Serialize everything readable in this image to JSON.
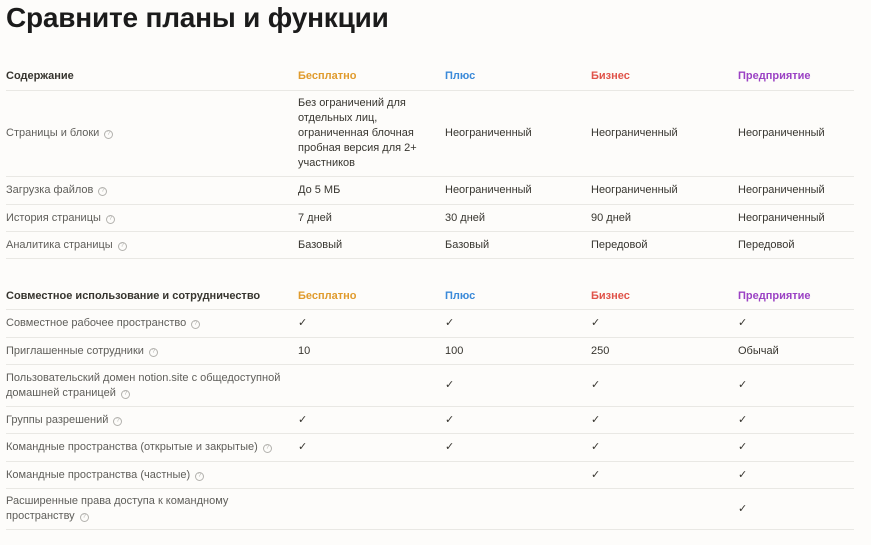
{
  "title": "Сравните планы и функции",
  "colors": {
    "free": "#e09b2d",
    "plus": "#3b8ad9",
    "business": "#e0534a",
    "enterprise": "#9b42c4"
  },
  "check_icon": "✓",
  "sections": [
    {
      "header": "Содержание",
      "plans": [
        "Бесплатно",
        "Плюс",
        "Бизнес",
        "Предприятие"
      ],
      "rows": [
        {
          "label": "Страницы и блоки",
          "values": [
            "Без ограничений для отдельных лиц, ограниченная блочная пробная версия для 2+ участников",
            "Неограниченный",
            "Неограниченный",
            "Неограниченный"
          ]
        },
        {
          "label": "Загрузка файлов",
          "values": [
            "До 5 МБ",
            "Неограниченный",
            "Неограниченный",
            "Неограниченный"
          ]
        },
        {
          "label": "История страницы",
          "values": [
            "7 дней",
            "30 дней",
            "90 дней",
            "Неограниченный"
          ]
        },
        {
          "label": "Аналитика страницы",
          "values": [
            "Базовый",
            "Базовый",
            "Передовой",
            "Передовой"
          ]
        }
      ]
    },
    {
      "header": "Совместное использование и сотрудничество",
      "plans": [
        "Бесплатно",
        "Плюс",
        "Бизнес",
        "Предприятие"
      ],
      "rows": [
        {
          "label": "Совместное рабочее пространство",
          "values": [
            "✓",
            "✓",
            "✓",
            "✓"
          ]
        },
        {
          "label": "Приглашенные сотрудники",
          "values": [
            "10",
            "100",
            "250",
            "Обычай"
          ]
        },
        {
          "label": "Пользовательский домен notion.site с общедоступной домашней страницей",
          "values": [
            "",
            "✓",
            "✓",
            "✓"
          ]
        },
        {
          "label": "Группы разрешений",
          "values": [
            "✓",
            "✓",
            "✓",
            "✓"
          ]
        },
        {
          "label": "Командные пространства (открытые и закрытые)",
          "values": [
            "✓",
            "✓",
            "✓",
            "✓"
          ]
        },
        {
          "label": "Командные пространства (частные)",
          "values": [
            "",
            "",
            "✓",
            "✓"
          ]
        },
        {
          "label": "Расширенные права доступа к командному пространству",
          "values": [
            "",
            "",
            "",
            "✓"
          ]
        }
      ]
    }
  ]
}
